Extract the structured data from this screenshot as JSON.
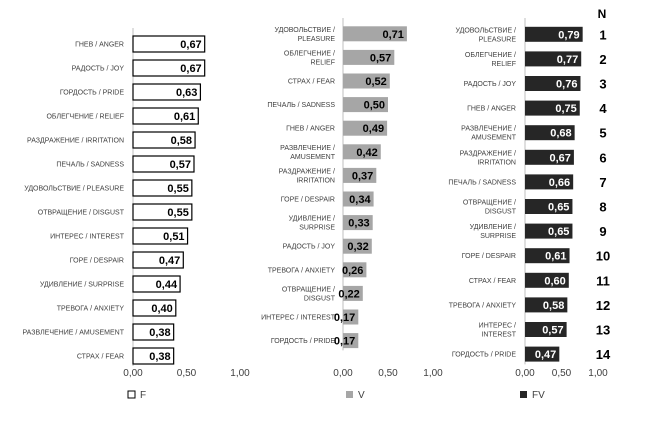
{
  "chart_data": [
    {
      "type": "bar",
      "orientation": "horizontal",
      "legend": "F",
      "xlim": [
        0,
        1
      ],
      "xticks": [
        "0,00",
        "0,50",
        "1,00"
      ],
      "bar_fill": "#ffffff",
      "bar_stroke": "#000000",
      "categories": [
        "ГНЕВ / ANGER",
        "РАДОСТЬ / JOY",
        "ГОРДОСТЬ / PRIDE",
        "ОБЛЕГЧЕНИЕ / RELIEF",
        "РАЗДРАЖЕНИЕ / IRRITATION",
        "ПЕЧАЛЬ / SADNESS",
        "УДОВОЛЬСТВИЕ / PLEASURE",
        "ОТВРАЩЕНИЕ / DISGUST",
        "ИНТЕРЕС / INTEREST",
        "ГОРЕ / DESPAIR",
        "УДИВЛЕНИЕ / SURPRISE",
        "ТРЕВОГА / ANXIETY",
        "РАЗВЛЕЧЕНИЕ / AMUSEMENT",
        "СТРАХ / FEAR"
      ],
      "values": [
        0.67,
        0.67,
        0.63,
        0.61,
        0.58,
        0.57,
        0.55,
        0.55,
        0.51,
        0.47,
        0.44,
        0.4,
        0.38,
        0.38
      ],
      "data_labels": [
        "0,67",
        "0,67",
        "0,63",
        "0,61",
        "0,58",
        "0,57",
        "0,55",
        "0,55",
        "0,51",
        "0,47",
        "0,44",
        "0,40",
        "0,38",
        "0,38"
      ]
    },
    {
      "type": "bar",
      "orientation": "horizontal",
      "legend": "V",
      "xlim": [
        0,
        1
      ],
      "xticks": [
        "0,00",
        "0,50",
        "1,00"
      ],
      "bar_fill": "#a6a6a6",
      "categories": [
        [
          "УДОВОЛЬСТВИЕ /",
          "PLEASURE"
        ],
        [
          "ОБЛЕГЧЕНИЕ /",
          "RELIEF"
        ],
        [
          "СТРАХ / FEAR"
        ],
        [
          "ПЕЧАЛЬ / SADNESS"
        ],
        [
          "ГНЕВ / ANGER"
        ],
        [
          "РАЗВЛЕЧЕНИЕ /",
          "AMUSEMENT"
        ],
        [
          "РАЗДРАЖЕНИЕ /",
          "IRRITATION"
        ],
        [
          "ГОРЕ / DESPAIR"
        ],
        [
          "УДИВЛЕНИЕ /",
          "SURPRISE"
        ],
        [
          "РАДОСТЬ / JOY"
        ],
        [
          "ТРЕВОГА / ANXIETY"
        ],
        [
          "ОТВРАЩЕНИЕ /",
          "DISGUST"
        ],
        [
          "ИНТЕРЕС / INTEREST"
        ],
        [
          "ГОРДОСТЬ / PRIDE"
        ]
      ],
      "values": [
        0.71,
        0.57,
        0.52,
        0.5,
        0.49,
        0.42,
        0.37,
        0.34,
        0.33,
        0.32,
        0.26,
        0.22,
        0.17,
        0.17
      ],
      "data_labels": [
        "0,71",
        "0,57",
        "0,52",
        "0,50",
        "0,49",
        "0,42",
        "0,37",
        "0,34",
        "0,33",
        "0,32",
        "0,26",
        "0,22",
        "0,17",
        "0,17"
      ]
    },
    {
      "type": "bar",
      "orientation": "horizontal",
      "legend": "FV",
      "xlim": [
        0,
        1
      ],
      "xticks": [
        "0,00",
        "0,50",
        "1,00"
      ],
      "bar_fill": "#262626",
      "categories": [
        [
          "УДОВОЛЬСТВИЕ /",
          "PLEASURE"
        ],
        [
          "ОБЛЕГЧЕНИЕ /",
          "RELIEF"
        ],
        [
          "РАДОСТЬ / JOY"
        ],
        [
          "ГНЕВ / ANGER"
        ],
        [
          "РАЗВЛЕЧЕНИЕ /",
          "AMUSEMENT"
        ],
        [
          "РАЗДРАЖЕНИЕ /",
          "IRRITATION"
        ],
        [
          "ПЕЧАЛЬ / SADNESS"
        ],
        [
          "ОТВРАЩЕНИЕ /",
          "DISGUST"
        ],
        [
          "УДИВЛЕНИЕ /",
          "SURPRISE"
        ],
        [
          "ГОРЕ / DESPAIR"
        ],
        [
          "СТРАХ / FEAR"
        ],
        [
          "ТРЕВОГА / ANXIETY"
        ],
        [
          "ИНТЕРЕС /",
          "INTEREST"
        ],
        [
          "ГОРДОСТЬ / PRIDE"
        ]
      ],
      "values": [
        0.79,
        0.77,
        0.76,
        0.75,
        0.68,
        0.67,
        0.66,
        0.65,
        0.65,
        0.61,
        0.6,
        0.58,
        0.57,
        0.47
      ],
      "data_labels": [
        "0,79",
        "0,77",
        "0,76",
        "0,75",
        "0,68",
        "0,67",
        "0,66",
        "0,65",
        "0,65",
        "0,61",
        "0,60",
        "0,58",
        "0,57",
        "0,47"
      ]
    }
  ],
  "rank_header": "N",
  "ranks": [
    "1",
    "2",
    "3",
    "4",
    "5",
    "6",
    "7",
    "8",
    "9",
    "10",
    "11",
    "12",
    "13",
    "14"
  ]
}
